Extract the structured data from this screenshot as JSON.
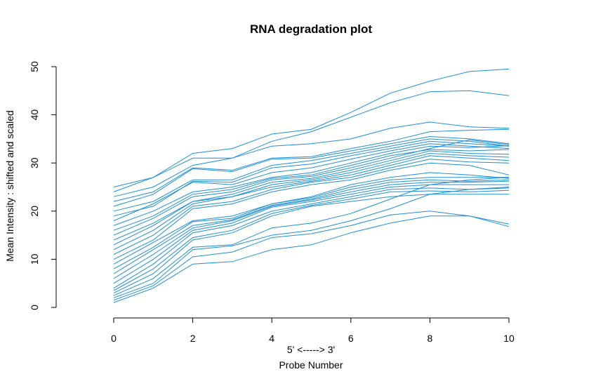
{
  "chart_data": {
    "type": "line",
    "title": "RNA degradation plot",
    "xlabel": "Probe Number",
    "xsublabel": "5' <-----> 3'",
    "ylabel": "Mean Intensity : shifted and scaled",
    "xlim": [
      0,
      10
    ],
    "ylim": [
      0,
      50
    ],
    "xticks": [
      0,
      2,
      4,
      6,
      8,
      10
    ],
    "yticks": [
      0,
      10,
      20,
      30,
      40,
      50
    ],
    "grid": false,
    "legend": "none",
    "line_color": "#1f8fd6",
    "x": [
      0,
      1,
      2,
      3,
      4,
      5,
      6,
      7,
      8,
      9,
      10
    ],
    "series": [
      {
        "values": [
          25,
          27,
          32,
          33,
          36,
          37,
          40.5,
          44.5,
          47,
          49,
          49.5
        ]
      },
      {
        "values": [
          24,
          27,
          31,
          31,
          34.5,
          36.5,
          39.5,
          42.5,
          44.8,
          45,
          44
        ]
      },
      {
        "values": [
          23,
          25,
          29.5,
          31,
          33.5,
          34,
          35,
          37.2,
          38.5,
          37.5,
          37.2
        ]
      },
      {
        "values": [
          22,
          24,
          29,
          28.5,
          31,
          31.3,
          33,
          34.5,
          36.5,
          36.8,
          37
        ]
      },
      {
        "values": [
          21,
          23.5,
          28.8,
          28.2,
          30.8,
          31,
          32.5,
          34,
          35.5,
          35,
          34
        ]
      },
      {
        "values": [
          20,
          22,
          26.5,
          26.5,
          29.5,
          30.5,
          32,
          33.5,
          35,
          34.5,
          33.5
        ]
      },
      {
        "values": [
          19,
          21,
          26.2,
          26,
          29,
          29.8,
          31.5,
          33,
          34.5,
          34,
          33.5
        ]
      },
      {
        "values": [
          18,
          21.5,
          26,
          25.5,
          28,
          29,
          30.8,
          32.5,
          34,
          33.5,
          33
        ]
      },
      {
        "values": [
          17,
          20,
          24,
          25,
          27,
          28,
          30,
          32,
          33.5,
          33.2,
          33.6
        ]
      },
      {
        "values": [
          16,
          19,
          23.5,
          24.5,
          26.8,
          27.5,
          29.5,
          31.5,
          32.8,
          32.5,
          32.8
        ]
      },
      {
        "values": [
          15,
          18.5,
          23,
          24,
          26.5,
          27.2,
          29,
          31,
          33,
          34.8,
          33.8
        ]
      },
      {
        "values": [
          14,
          17.5,
          22,
          23.5,
          26,
          26.8,
          28.5,
          30.5,
          32.5,
          32,
          31.8
        ]
      },
      {
        "values": [
          13,
          17,
          22,
          23,
          25.5,
          26.5,
          28,
          30,
          32,
          31.5,
          31.2
        ]
      },
      {
        "values": [
          12,
          16,
          21.5,
          23,
          25,
          26.2,
          27.5,
          29.5,
          31.5,
          31,
          30.5
        ]
      },
      {
        "values": [
          11,
          15,
          21,
          22,
          24.5,
          26,
          27,
          29,
          30.8,
          30.2,
          30
        ]
      },
      {
        "values": [
          10,
          14,
          20.5,
          21.5,
          24,
          25.5,
          26.5,
          28.5,
          30,
          29.5,
          27.5
        ]
      },
      {
        "values": [
          9,
          13.5,
          18,
          19,
          21.5,
          23,
          25.5,
          27,
          28,
          27.5,
          26.8
        ]
      },
      {
        "values": [
          8,
          12.5,
          17.8,
          18.5,
          21.5,
          22.8,
          25,
          26.5,
          27,
          27,
          27
        ]
      },
      {
        "values": [
          7,
          12,
          17,
          18.2,
          21.2,
          22.5,
          24.5,
          26,
          26.5,
          26.2,
          26.5
        ]
      },
      {
        "values": [
          6,
          11,
          16.5,
          18,
          21,
          22.3,
          24,
          25.5,
          26,
          26,
          26.2
        ]
      },
      {
        "values": [
          5,
          10,
          16,
          17.5,
          20.8,
          22,
          23.5,
          25,
          25.5,
          25.5,
          25.5
        ]
      },
      {
        "values": [
          4,
          9,
          15.5,
          17,
          20,
          21.5,
          23,
          24.5,
          24.8,
          24.5,
          24.8
        ]
      },
      {
        "values": [
          3.5,
          8,
          14.5,
          16,
          19.5,
          21.2,
          22.5,
          24,
          24.2,
          24,
          24.3
        ]
      },
      {
        "values": [
          3,
          7,
          14,
          15.5,
          19,
          21,
          22,
          23,
          23.5,
          23.5,
          23.5
        ]
      },
      {
        "values": [
          2.5,
          6,
          12.5,
          13,
          16.5,
          17.5,
          19.5,
          22.5,
          25.5,
          26.5,
          27
        ]
      },
      {
        "values": [
          2,
          5,
          12,
          12.8,
          15,
          16,
          18,
          20.5,
          23.5,
          24.5,
          25
        ]
      },
      {
        "values": [
          1.5,
          4.5,
          10.5,
          11.5,
          14.5,
          15.3,
          17,
          19.2,
          20,
          19,
          17.3
        ]
      },
      {
        "values": [
          1,
          4,
          9,
          9.5,
          12,
          13,
          15.5,
          17.5,
          19,
          19,
          16.8
        ]
      }
    ]
  }
}
